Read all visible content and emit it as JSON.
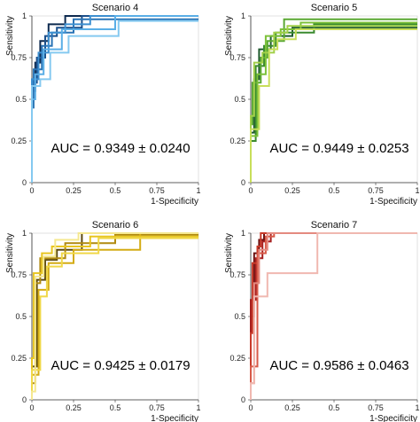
{
  "chart_data": [
    {
      "type": "line",
      "title": "Scenario 4",
      "xlabel": "1-Specificity",
      "ylabel": "Sensitivity",
      "xlim": [
        0,
        1
      ],
      "ylim": [
        0,
        1
      ],
      "xticks": [
        "0",
        "0.25",
        "0.5",
        "0.75",
        "1"
      ],
      "yticks": [
        "0",
        "0.25",
        "0.5",
        "0.75",
        "1"
      ],
      "annotation": "AUC = 0.9349 ± 0.0240",
      "grid": false,
      "colors": [
        "#0d2a4f",
        "#1b4f8a",
        "#2a74b5",
        "#3d8fd0",
        "#5aaee6",
        "#85c9f0"
      ],
      "series": [
        {
          "x": [
            0,
            0,
            0.02,
            0.02,
            0.05,
            0.05,
            0.1,
            0.1,
            0.2,
            0.2,
            1
          ],
          "y": [
            0,
            0.55,
            0.55,
            0.72,
            0.72,
            0.85,
            0.85,
            0.95,
            0.95,
            1,
            1
          ]
        },
        {
          "x": [
            0,
            0,
            0.03,
            0.03,
            0.08,
            0.08,
            0.15,
            0.15,
            0.3,
            0.3,
            1
          ],
          "y": [
            0,
            0.6,
            0.6,
            0.75,
            0.75,
            0.88,
            0.88,
            0.93,
            0.93,
            1,
            1
          ]
        },
        {
          "x": [
            0,
            0,
            0.01,
            0.01,
            0.06,
            0.06,
            0.12,
            0.12,
            0.25,
            0.25,
            1
          ],
          "y": [
            0,
            0.45,
            0.45,
            0.68,
            0.68,
            0.82,
            0.82,
            0.9,
            0.9,
            0.98,
            0.98
          ]
        },
        {
          "x": [
            0,
            0,
            0.04,
            0.04,
            0.1,
            0.1,
            0.2,
            0.2,
            0.35,
            0.35,
            1
          ],
          "y": [
            0,
            0.62,
            0.62,
            0.78,
            0.78,
            0.9,
            0.9,
            0.95,
            0.95,
            1,
            1
          ]
        },
        {
          "x": [
            0,
            0,
            0.02,
            0.02,
            0.07,
            0.07,
            0.18,
            0.18,
            0.5,
            0.5,
            1
          ],
          "y": [
            0,
            0.5,
            0.5,
            0.65,
            0.65,
            0.8,
            0.8,
            0.92,
            0.92,
            1,
            1
          ]
        },
        {
          "x": [
            0,
            0,
            0.05,
            0.05,
            0.11,
            0.11,
            0.22,
            0.22,
            0.52,
            0.52,
            1
          ],
          "y": [
            0,
            0.58,
            0.58,
            0.62,
            0.62,
            0.78,
            0.78,
            0.88,
            0.88,
            0.97,
            0.97
          ]
        }
      ]
    },
    {
      "type": "line",
      "title": "Scenario 5",
      "xlabel": "1-Specificity",
      "ylabel": "Sensitivity",
      "xlim": [
        0,
        1
      ],
      "ylim": [
        0,
        1
      ],
      "xticks": [
        "0",
        "0.25",
        "0.5",
        "0.75",
        "1"
      ],
      "yticks": [
        "0",
        "0.25",
        "0.5",
        "0.75",
        "1"
      ],
      "annotation": "AUC = 0.9449 ± 0.0253",
      "grid": false,
      "colors": [
        "#1f5a2e",
        "#3a8a2e",
        "#5aa832",
        "#7cc13a",
        "#a2d04a",
        "#c8de5a"
      ],
      "series": [
        {
          "x": [
            0,
            0,
            0.02,
            0.02,
            0.05,
            0.05,
            0.12,
            0.12,
            0.25,
            0.25,
            1
          ],
          "y": [
            0,
            0.3,
            0.3,
            0.62,
            0.62,
            0.8,
            0.8,
            0.88,
            0.88,
            0.93,
            0.93
          ]
        },
        {
          "x": [
            0,
            0,
            0.03,
            0.03,
            0.08,
            0.08,
            0.15,
            0.15,
            0.38,
            0.38,
            1
          ],
          "y": [
            0,
            0.25,
            0.25,
            0.7,
            0.7,
            0.82,
            0.82,
            0.9,
            0.9,
            0.95,
            0.95
          ]
        },
        {
          "x": [
            0,
            0,
            0.01,
            0.01,
            0.06,
            0.06,
            0.1,
            0.1,
            0.2,
            0.2,
            1
          ],
          "y": [
            0,
            0.35,
            0.35,
            0.6,
            0.6,
            0.75,
            0.75,
            0.85,
            0.85,
            0.98,
            0.98
          ]
        },
        {
          "x": [
            0,
            0,
            0.04,
            0.04,
            0.09,
            0.09,
            0.18,
            0.18,
            0.3,
            0.3,
            1
          ],
          "y": [
            0,
            0.28,
            0.28,
            0.65,
            0.65,
            0.88,
            0.88,
            0.92,
            0.92,
            0.96,
            0.96
          ]
        },
        {
          "x": [
            0,
            0,
            0.02,
            0.02,
            0.07,
            0.07,
            0.14,
            0.14,
            0.22,
            0.22,
            1
          ],
          "y": [
            0,
            0.4,
            0.4,
            0.72,
            0.72,
            0.78,
            0.78,
            0.9,
            0.9,
            0.94,
            0.94
          ]
        },
        {
          "x": [
            0,
            0,
            0.05,
            0.05,
            0.11,
            0.11,
            0.16,
            0.16,
            0.27,
            0.27,
            1
          ],
          "y": [
            0,
            0.32,
            0.32,
            0.58,
            0.58,
            0.8,
            0.8,
            0.86,
            0.86,
            0.92,
            0.92
          ]
        }
      ]
    },
    {
      "type": "line",
      "title": "Scenario 6",
      "xlabel": "1-Specificity",
      "ylabel": "Sensitivity",
      "xlim": [
        0,
        1
      ],
      "ylim": [
        0,
        1
      ],
      "xticks": [
        "0",
        "0.25",
        "0.5",
        "0.75",
        "1"
      ],
      "yticks": [
        "0",
        "0.25",
        "0.5",
        "0.75",
        "1"
      ],
      "annotation": "AUC = 0.9425 ± 0.0179",
      "grid": false,
      "colors": [
        "#5c4a10",
        "#b08a10",
        "#d4ac14",
        "#e8c520",
        "#f0d848",
        "#f5e890"
      ],
      "series": [
        {
          "x": [
            0,
            0,
            0.03,
            0.03,
            0.08,
            0.08,
            0.15,
            0.15,
            0.3,
            0.3,
            1
          ],
          "y": [
            0,
            0.2,
            0.2,
            0.72,
            0.72,
            0.84,
            0.84,
            0.9,
            0.9,
            1,
            1
          ]
        },
        {
          "x": [
            0,
            0,
            0.02,
            0.02,
            0.05,
            0.05,
            0.2,
            0.2,
            0.5,
            0.5,
            1
          ],
          "y": [
            0,
            0.1,
            0.1,
            0.7,
            0.7,
            0.85,
            0.85,
            0.94,
            0.94,
            0.99,
            0.99
          ]
        },
        {
          "x": [
            0,
            0,
            0.04,
            0.04,
            0.1,
            0.1,
            0.25,
            0.25,
            0.65,
            0.65,
            1
          ],
          "y": [
            0,
            0.15,
            0.15,
            0.66,
            0.66,
            0.82,
            0.82,
            0.9,
            0.9,
            1,
            1
          ]
        },
        {
          "x": [
            0,
            0,
            0.01,
            0.01,
            0.06,
            0.06,
            0.12,
            0.12,
            0.35,
            0.35,
            1
          ],
          "y": [
            0,
            0.25,
            0.25,
            0.76,
            0.76,
            0.88,
            0.88,
            0.92,
            0.92,
            0.98,
            0.98
          ]
        },
        {
          "x": [
            0,
            0,
            0.05,
            0.05,
            0.09,
            0.09,
            0.18,
            0.18,
            0.4,
            0.4,
            1
          ],
          "y": [
            0,
            0.18,
            0.18,
            0.62,
            0.62,
            0.8,
            0.8,
            0.88,
            0.88,
            0.97,
            0.97
          ]
        },
        {
          "x": [
            0,
            0,
            0.02,
            0.02,
            0.07,
            0.07,
            0.14,
            0.14,
            0.28,
            0.28,
            1
          ],
          "y": [
            0,
            0.05,
            0.05,
            0.74,
            0.74,
            0.86,
            0.86,
            0.96,
            0.96,
            1,
            1
          ]
        }
      ]
    },
    {
      "type": "line",
      "title": "Scenario 7",
      "xlabel": "1-Specificity",
      "ylabel": "Sensitivity",
      "xlim": [
        0,
        1
      ],
      "ylim": [
        0,
        1
      ],
      "xticks": [
        "0",
        "0.25",
        "0.5",
        "0.75",
        "1"
      ],
      "yticks": [
        "0",
        "0.25",
        "0.5",
        "0.75",
        "1"
      ],
      "annotation": "AUC = 0.9586 ± 0.0463",
      "grid": false,
      "colors": [
        "#6a1010",
        "#a51e1e",
        "#c83a2a",
        "#d85a48",
        "#e48a80",
        "#f0b8b0"
      ],
      "series": [
        {
          "x": [
            0,
            0,
            0.02,
            0.02,
            0.05,
            0.05,
            0.08,
            0.08,
            1
          ],
          "y": [
            0,
            0.5,
            0.5,
            0.88,
            0.88,
            0.96,
            0.96,
            1,
            1
          ]
        },
        {
          "x": [
            0,
            0,
            0.03,
            0.03,
            0.07,
            0.07,
            0.12,
            0.12,
            1
          ],
          "y": [
            0,
            0.6,
            0.6,
            0.85,
            0.85,
            0.95,
            0.95,
            1,
            1
          ]
        },
        {
          "x": [
            0,
            0,
            0.01,
            0.01,
            0.04,
            0.04,
            0.06,
            0.06,
            1
          ],
          "y": [
            0,
            0.4,
            0.4,
            0.82,
            0.82,
            0.92,
            0.92,
            1,
            1
          ]
        },
        {
          "x": [
            0,
            0,
            0.04,
            0.04,
            0.09,
            0.09,
            0.14,
            0.14,
            1
          ],
          "y": [
            0,
            0.2,
            0.2,
            0.88,
            0.88,
            0.98,
            0.98,
            1,
            1
          ]
        },
        {
          "x": [
            0,
            0,
            0.02,
            0.02,
            0.05,
            0.05,
            0.1,
            0.1,
            1
          ],
          "y": [
            0,
            0.1,
            0.1,
            0.7,
            0.7,
            0.9,
            0.9,
            1,
            1
          ]
        },
        {
          "x": [
            0,
            0,
            0.02,
            0.02,
            0.08,
            0.08,
            0.1,
            0.1,
            0.4,
            0.4,
            1
          ],
          "y": [
            0,
            0.1,
            0.1,
            0.62,
            0.62,
            0.62,
            0.62,
            0.76,
            0.76,
            1,
            1
          ]
        }
      ]
    }
  ]
}
